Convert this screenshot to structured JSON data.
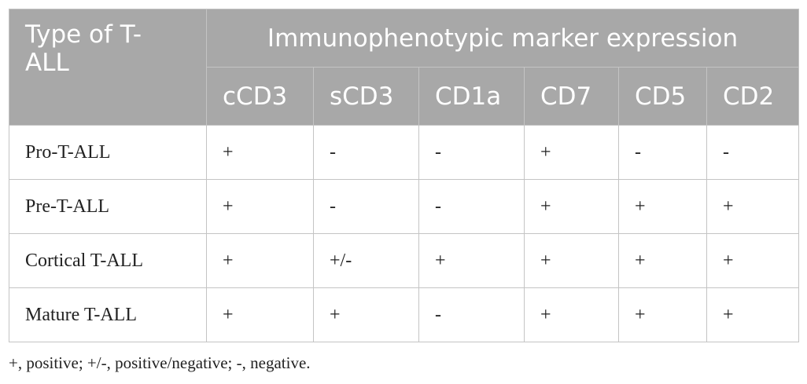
{
  "table": {
    "header": {
      "corner": "Type of T-ALL",
      "group": "Immunophenotypic marker expression",
      "columns": [
        "cCD3",
        "sCD3",
        "CD1a",
        "CD7",
        "CD5",
        "CD2"
      ]
    },
    "rows": [
      [
        "Pro-T-ALL",
        "+",
        "-",
        "-",
        "+",
        "-",
        "-"
      ],
      [
        "Pre-T-ALL",
        "+",
        "-",
        "-",
        "+",
        "+",
        "+"
      ],
      [
        "Cortical T-ALL",
        "+",
        "+/-",
        "+",
        "+",
        "+",
        "+"
      ],
      [
        "Mature T-ALL",
        "+",
        "+",
        "-",
        "+",
        "+",
        "+"
      ]
    ]
  },
  "footnote": "+, positive; +/-, positive/negative; -, negative."
}
